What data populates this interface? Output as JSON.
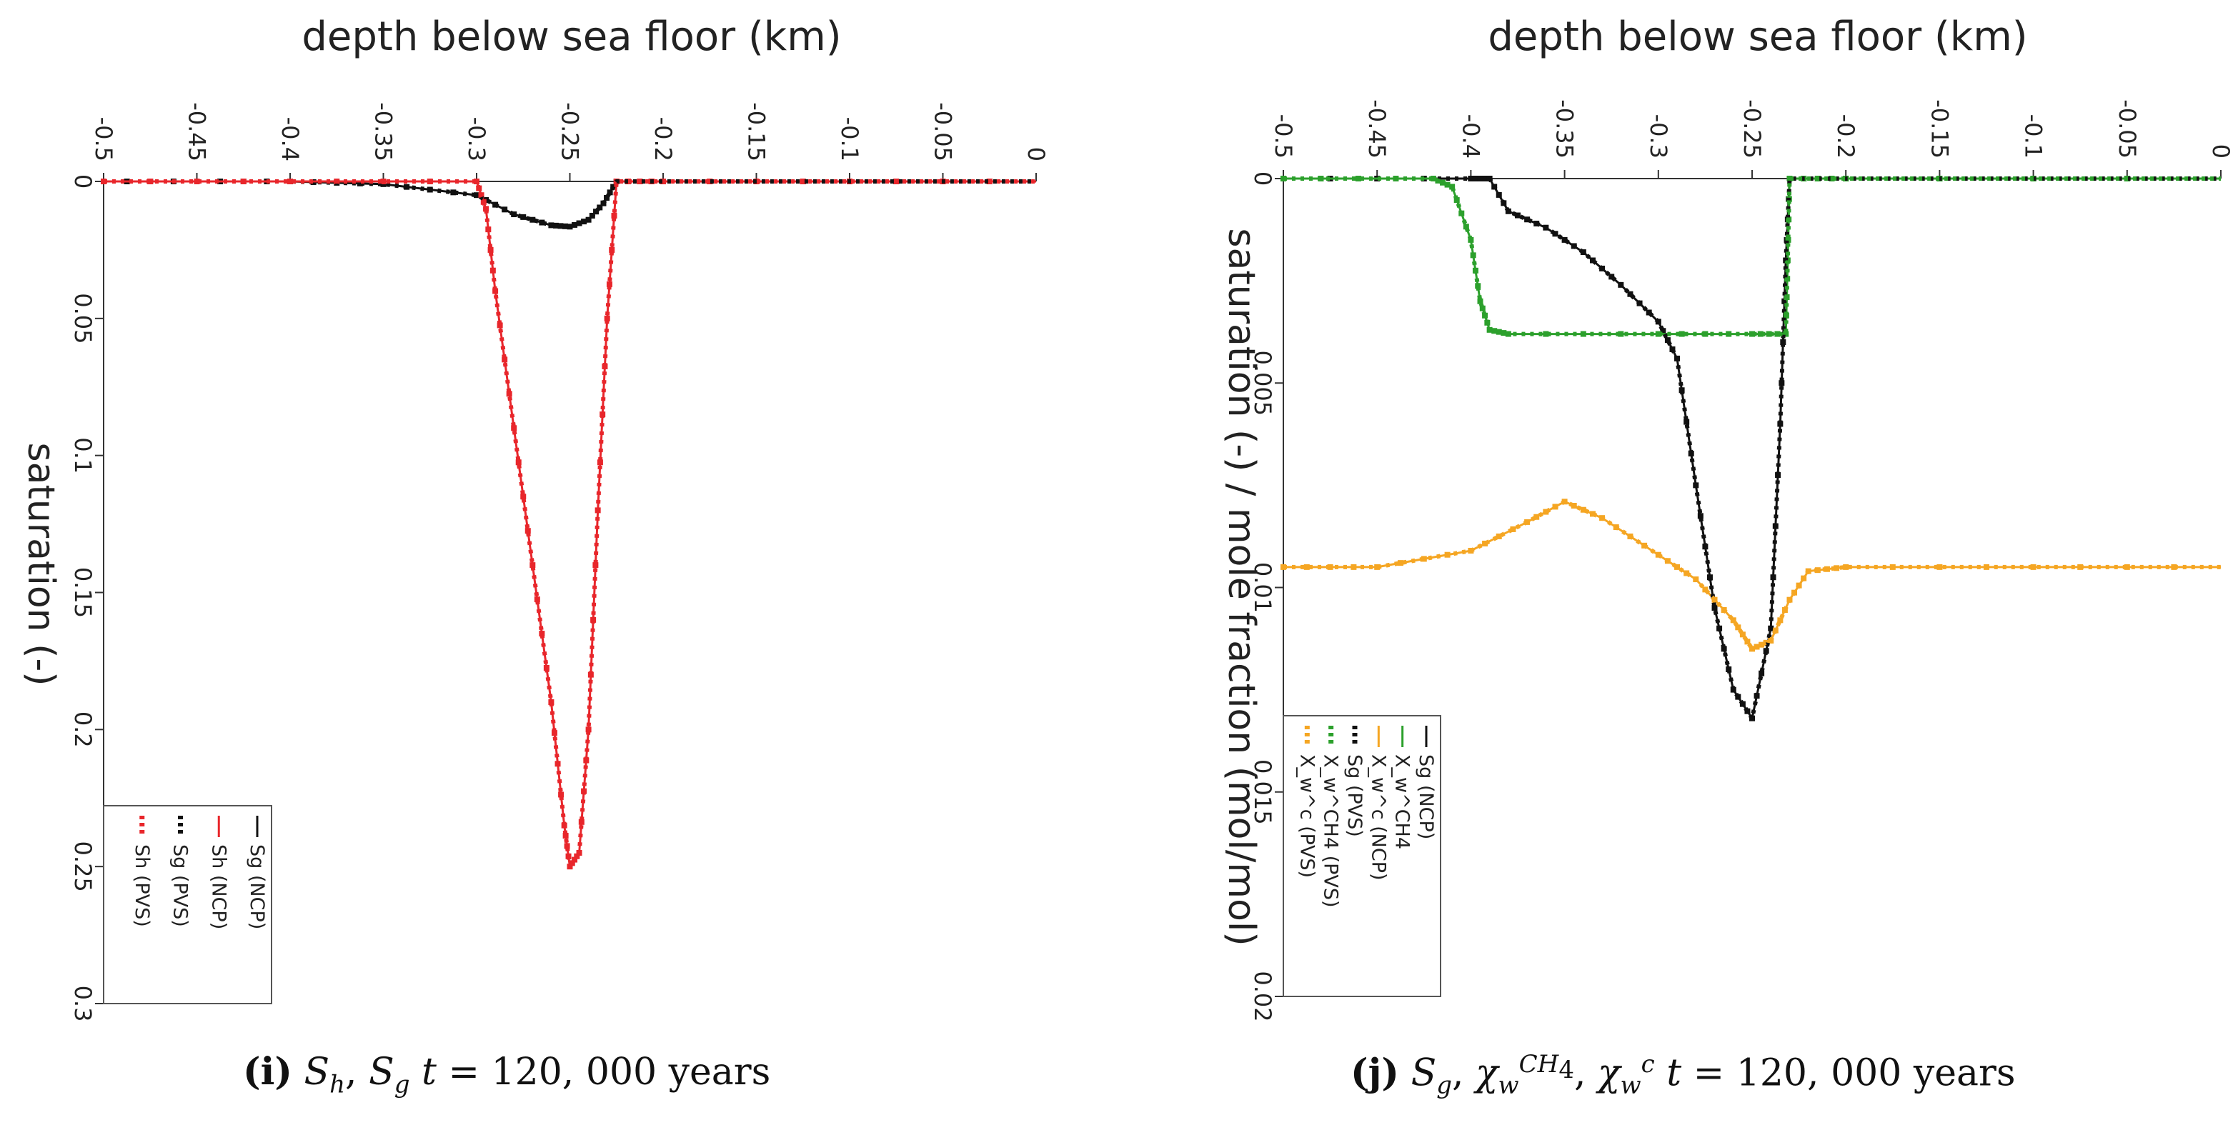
{
  "chart_data": [
    {
      "id": "i",
      "type": "line",
      "title": "depth below sea floor (km)",
      "xlabel": "depth below sea floor (km)",
      "ylabel": "saturation (-)",
      "xlim": [
        -0.5,
        0
      ],
      "ylim": [
        0,
        0.3
      ],
      "x_ticks": [
        "-0.5",
        "-0.45",
        "-0.4",
        "-0.35",
        "-0.3",
        "-0.25",
        "-0.2",
        "-0.15",
        "-0.1",
        "-0.05",
        "0"
      ],
      "y_ticks": [
        "0",
        "0.05",
        "0.1",
        "0.15",
        "0.2",
        "0.25",
        "0.3"
      ],
      "legend": [
        "Sg (NCP)",
        "Sh (NCP)",
        "Sg (PVS)",
        "Sh (PVS)"
      ],
      "colors": {
        "Sg": "#111111",
        "Sh": "#e8262b"
      },
      "series": [
        {
          "name": "Sg (NCP)",
          "style": "solid",
          "color": "#111111",
          "x": [
            -0.5,
            -0.45,
            -0.4,
            -0.35,
            -0.3,
            -0.28,
            -0.26,
            -0.25,
            -0.24,
            -0.232,
            -0.225,
            -0.2,
            -0.1,
            0
          ],
          "y": [
            0,
            0,
            0,
            0.001,
            0.005,
            0.012,
            0.016,
            0.0165,
            0.014,
            0.008,
            0,
            0,
            0,
            0
          ]
        },
        {
          "name": "Sh (NCP)",
          "style": "solid",
          "color": "#e8262b",
          "x": [
            -0.5,
            -0.4,
            -0.3,
            -0.295,
            -0.29,
            -0.28,
            -0.27,
            -0.26,
            -0.253,
            -0.25,
            -0.245,
            -0.24,
            -0.235,
            -0.23,
            -0.225,
            -0.2,
            -0.1,
            0
          ],
          "y": [
            0,
            0,
            0,
            0.01,
            0.04,
            0.09,
            0.14,
            0.19,
            0.235,
            0.25,
            0.245,
            0.2,
            0.12,
            0.05,
            0,
            0,
            0,
            0
          ]
        },
        {
          "name": "Sg (PVS)",
          "style": "dotted",
          "color": "#111111",
          "x": [
            -0.5,
            -0.45,
            -0.4,
            -0.35,
            -0.3,
            -0.28,
            -0.26,
            -0.25,
            -0.24,
            -0.232,
            -0.225,
            -0.2,
            -0.1,
            0
          ],
          "y": [
            0,
            0,
            0,
            0.001,
            0.005,
            0.012,
            0.016,
            0.0165,
            0.014,
            0.008,
            0,
            0,
            0,
            0
          ]
        },
        {
          "name": "Sh (PVS)",
          "style": "dotted",
          "color": "#e8262b",
          "x": [
            -0.5,
            -0.4,
            -0.3,
            -0.295,
            -0.29,
            -0.28,
            -0.27,
            -0.26,
            -0.253,
            -0.25,
            -0.245,
            -0.24,
            -0.235,
            -0.23,
            -0.225,
            -0.2,
            -0.1,
            0
          ],
          "y": [
            0,
            0,
            0,
            0.01,
            0.04,
            0.09,
            0.14,
            0.19,
            0.235,
            0.25,
            0.245,
            0.2,
            0.12,
            0.05,
            0,
            0,
            0,
            0
          ]
        }
      ],
      "caption": {
        "label": "(i)",
        "tail": "t = 120, 000 years"
      }
    },
    {
      "id": "j",
      "type": "line",
      "title": "depth below sea floor (km)",
      "xlabel": "depth below sea floor (km)",
      "ylabel": "saturation (-) / mole fraction (mol/mol)",
      "xlim": [
        -0.5,
        0
      ],
      "ylim": [
        0,
        0.02
      ],
      "x_ticks": [
        "-0.5",
        "-0.45",
        "-0.4",
        "-0.35",
        "-0.3",
        "-0.25",
        "-0.2",
        "-0.15",
        "-0.1",
        "-0.05",
        "0"
      ],
      "y_ticks": [
        "0",
        "0.005",
        "0.01",
        "0.015",
        "0.02"
      ],
      "legend": [
        "Sg (NCP)",
        "X_w^CH4",
        "X_w^c (NCP)",
        "Sg (PVS)",
        "X_w^CH4 (PVS)",
        "X_w^c (PVS)"
      ],
      "colors": {
        "Sg": "#111111",
        "CH4": "#2ca02c",
        "c": "#f5a623"
      },
      "series": [
        {
          "name": "Sg (NCP)",
          "style": "solid",
          "color": "#111111",
          "x": [
            -0.5,
            -0.4,
            -0.39,
            -0.38,
            -0.36,
            -0.34,
            -0.32,
            -0.3,
            -0.29,
            -0.28,
            -0.27,
            -0.26,
            -0.25,
            -0.24,
            -0.235,
            -0.232,
            -0.23,
            -0.2,
            0
          ],
          "y": [
            0,
            0,
            0,
            0.0008,
            0.0012,
            0.0018,
            0.0026,
            0.0035,
            0.0044,
            0.0075,
            0.0105,
            0.0125,
            0.0132,
            0.011,
            0.006,
            0.002,
            0,
            0,
            0
          ]
        },
        {
          "name": "X_w^CH4",
          "style": "solid",
          "color": "#2ca02c",
          "x": [
            -0.5,
            -0.42,
            -0.41,
            -0.4,
            -0.395,
            -0.39,
            -0.38,
            -0.3,
            -0.25,
            -0.232,
            -0.231,
            -0.23,
            -0.2,
            0
          ],
          "y": [
            0,
            0,
            0.0002,
            0.0015,
            0.003,
            0.0037,
            0.0038,
            0.0038,
            0.0038,
            0.0038,
            0.002,
            0,
            0,
            0
          ]
        },
        {
          "name": "X_w^c (NCP)",
          "style": "solid",
          "color": "#f5a623",
          "x": [
            -0.5,
            -0.45,
            -0.4,
            -0.37,
            -0.35,
            -0.33,
            -0.3,
            -0.28,
            -0.26,
            -0.25,
            -0.24,
            -0.23,
            -0.22,
            -0.2,
            -0.1,
            0
          ],
          "y": [
            0.0095,
            0.0095,
            0.0091,
            0.0084,
            0.0079,
            0.0083,
            0.0092,
            0.0098,
            0.0108,
            0.0115,
            0.0113,
            0.0103,
            0.0096,
            0.0095,
            0.0095,
            0.0095
          ]
        },
        {
          "name": "Sg (PVS)",
          "style": "dotted",
          "color": "#111111",
          "x": [
            -0.5,
            -0.4,
            -0.39,
            -0.38,
            -0.36,
            -0.34,
            -0.32,
            -0.3,
            -0.29,
            -0.28,
            -0.27,
            -0.26,
            -0.25,
            -0.24,
            -0.235,
            -0.232,
            -0.23,
            -0.2,
            0
          ],
          "y": [
            0,
            0,
            0,
            0.0008,
            0.0012,
            0.0018,
            0.0026,
            0.0035,
            0.0044,
            0.0075,
            0.0105,
            0.0125,
            0.0132,
            0.011,
            0.006,
            0.002,
            0,
            0,
            0
          ]
        },
        {
          "name": "X_w^CH4 (PVS)",
          "style": "dotted",
          "color": "#2ca02c",
          "x": [
            -0.5,
            -0.42,
            -0.41,
            -0.4,
            -0.395,
            -0.39,
            -0.38,
            -0.3,
            -0.25,
            -0.232,
            -0.231,
            -0.23,
            -0.2,
            0
          ],
          "y": [
            0,
            0,
            0.0002,
            0.0015,
            0.003,
            0.0037,
            0.0038,
            0.0038,
            0.0038,
            0.0038,
            0.002,
            0,
            0,
            0
          ]
        },
        {
          "name": "X_w^c (PVS)",
          "style": "dotted",
          "color": "#f5a623",
          "x": [
            -0.5,
            -0.45,
            -0.4,
            -0.37,
            -0.35,
            -0.33,
            -0.3,
            -0.28,
            -0.26,
            -0.25,
            -0.24,
            -0.23,
            -0.22,
            -0.2,
            -0.1,
            0
          ],
          "y": [
            0.0095,
            0.0095,
            0.0091,
            0.0084,
            0.0079,
            0.0083,
            0.0092,
            0.0098,
            0.0108,
            0.0115,
            0.0113,
            0.0103,
            0.0096,
            0.0095,
            0.0095,
            0.0095
          ]
        }
      ],
      "caption": {
        "label": "(j)",
        "tail": "t = 120, 000 years"
      }
    }
  ]
}
